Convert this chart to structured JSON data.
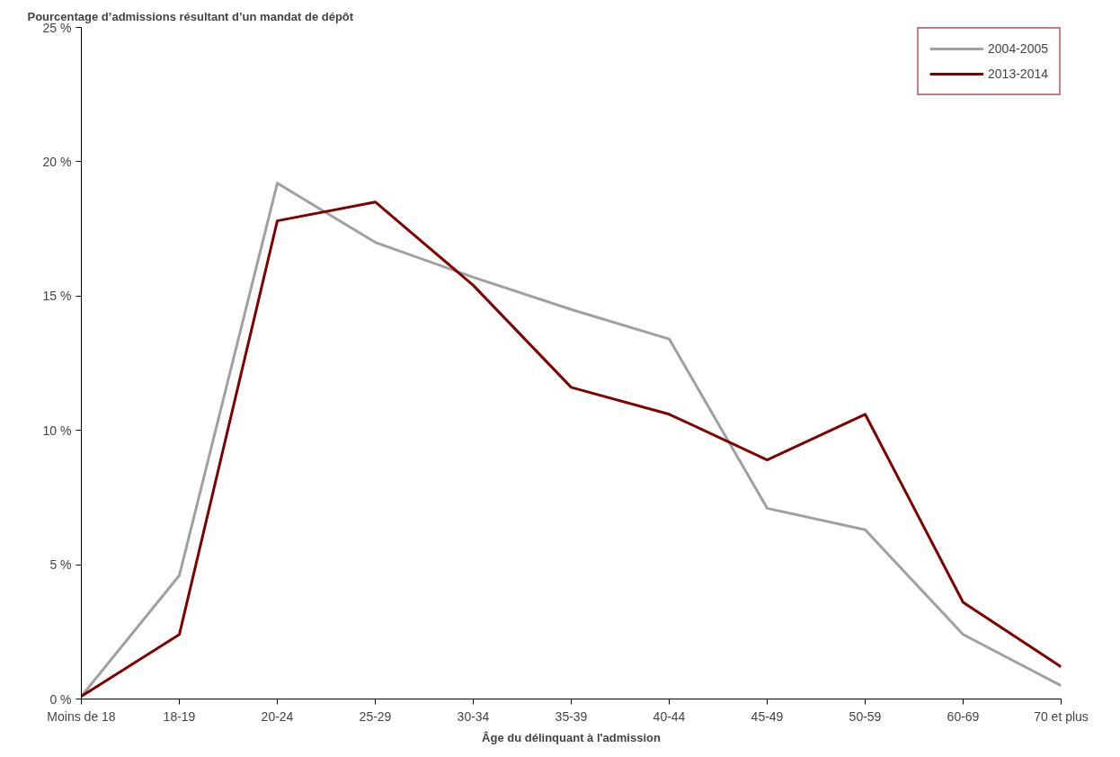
{
  "chart_data": {
    "type": "line",
    "ylabel": "Pourcentage d’admissions résultant d’un mandat de dépôt",
    "xlabel": "Âge du délinquant à l'admission",
    "categories": [
      "Moins de 18",
      "18-19",
      "20-24",
      "25-29",
      "30-34",
      "35-39",
      "40-44",
      "45-49",
      "50-59",
      "60-69",
      "70 et plus"
    ],
    "series": [
      {
        "name": "2004-2005",
        "color": "#a0a0a0",
        "values": [
          0.1,
          4.6,
          19.2,
          17.0,
          15.7,
          14.5,
          13.4,
          7.1,
          6.3,
          2.4,
          0.5
        ]
      },
      {
        "name": "2013-2014",
        "color": "#800000",
        "values": [
          0.1,
          2.4,
          17.8,
          18.5,
          15.4,
          11.6,
          10.6,
          8.9,
          10.6,
          3.6,
          1.2
        ]
      }
    ],
    "ylim": [
      0,
      25
    ],
    "yticks": [
      {
        "value": 0,
        "label": "0 %"
      },
      {
        "value": 5,
        "label": "5 %"
      },
      {
        "value": 10,
        "label": "10 %"
      },
      {
        "value": 15,
        "label": "15 %"
      },
      {
        "value": 20,
        "label": "20 %"
      },
      {
        "value": 25,
        "label": "25 %"
      }
    ],
    "grid": false,
    "legend": "top right",
    "line_style": "solid"
  }
}
